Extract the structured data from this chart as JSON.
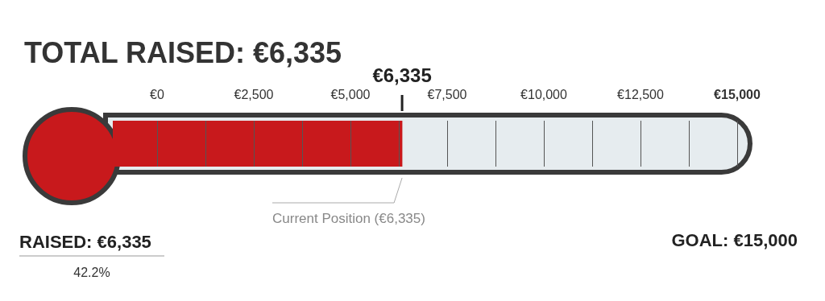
{
  "chart_data": {
    "type": "bar",
    "orientation": "horizontal",
    "title": "TOTAL RAISED: €6,335",
    "categories": [
      null
    ],
    "series": [
      {
        "color": "#c8191c",
        "values": [
          6335
        ]
      }
    ],
    "xlim": [
      0,
      15000
    ],
    "xticks": [
      {
        "value": 0,
        "label": "€0"
      },
      {
        "value": 1250,
        "label": null
      },
      {
        "value": 2500,
        "label": "€2,500"
      },
      {
        "value": 3750,
        "label": null
      },
      {
        "value": 5000,
        "label": "€5,000"
      },
      {
        "value": 6250,
        "label": null
      },
      {
        "value": 7500,
        "label": "€7,500"
      },
      {
        "value": 8750,
        "label": null
      },
      {
        "value": 10000,
        "label": "€10,000"
      },
      {
        "value": 11250,
        "label": null
      },
      {
        "value": 12500,
        "label": "€12,500"
      },
      {
        "value": 13750,
        "label": null
      },
      {
        "value": 15000,
        "label": "€15,000"
      }
    ],
    "grid": "x",
    "legend": false,
    "ref_lines": [
      {
        "axis": "x",
        "value": 6335,
        "label": "€6,335",
        "color": "#222222"
      }
    ],
    "annotations": [
      "Current Position (€6,335)",
      "GOAL: €15,000",
      "RAISED: €6,335",
      "42.2%"
    ]
  }
}
